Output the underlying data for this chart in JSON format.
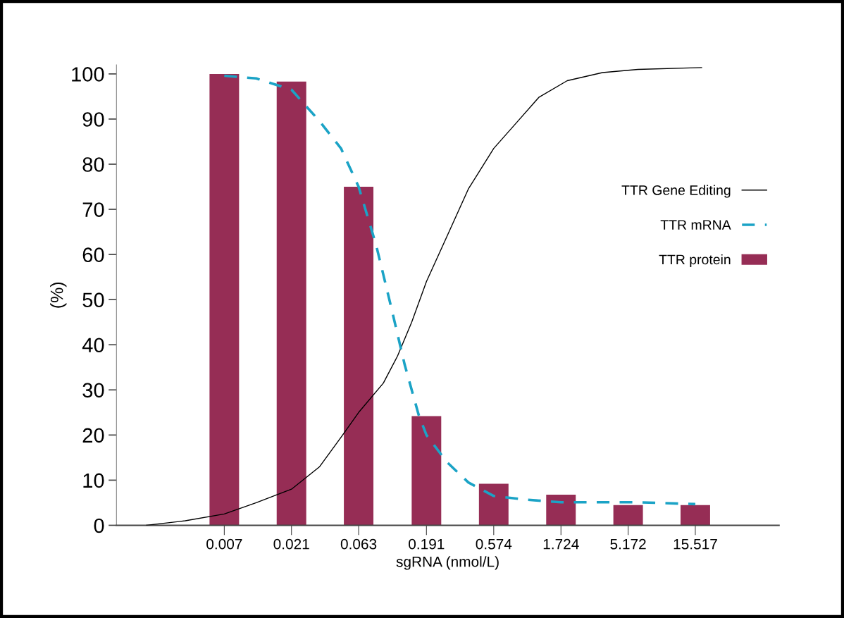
{
  "chart_data": {
    "type": "bar",
    "xlabel": "sgRNA (nmol/L)",
    "ylabel": "(%)",
    "log": "x",
    "xlim": [
      0.0012,
      61
    ],
    "xticks": [
      0.007,
      0.021,
      0.063,
      0.191,
      0.574,
      1.724,
      5.172,
      15.517
    ],
    "ylim": [
      0,
      102
    ],
    "yticks": [
      0,
      10,
      20,
      30,
      40,
      50,
      60,
      70,
      80,
      90,
      100
    ],
    "grid": false,
    "legend": "right",
    "marker": "none",
    "series": [
      {
        "name": "TTR Gene Editing",
        "type": "line",
        "color": "#000000",
        "line_style": "solid",
        "x": [
          0.00196,
          0.0037,
          0.007,
          0.0118,
          0.021,
          0.0333,
          0.0472,
          0.063,
          0.0944,
          0.119,
          0.15,
          0.191,
          0.267,
          0.379,
          0.574,
          0.85,
          1.2,
          1.91,
          3.4,
          6.07,
          17.2
        ],
        "values": [
          0,
          1,
          2.5,
          5,
          8,
          13,
          19.5,
          25,
          31.5,
          37.5,
          45,
          54,
          64,
          74.5,
          83.5,
          89.5,
          94.8,
          98.5,
          100.3,
          101,
          101.4
        ]
      },
      {
        "name": "TTR mRNA",
        "type": "line",
        "color": "#1ba3c6",
        "line_style": "dashed",
        "x": [
          0.007,
          0.0118,
          0.021,
          0.0333,
          0.0472,
          0.063,
          0.084,
          0.106,
          0.134,
          0.168,
          0.191,
          0.267,
          0.379,
          0.574,
          0.955,
          1.724,
          3.4,
          6.07,
          15.517
        ],
        "values": [
          99.6,
          99,
          96.5,
          89.5,
          83.5,
          75,
          62,
          49,
          35.5,
          24.5,
          20,
          14,
          9.5,
          6.5,
          5.7,
          5.1,
          5.1,
          5.1,
          4.7
        ]
      },
      {
        "name": "TTR protein",
        "color": "#962d55",
        "x": [
          0.007,
          0.021,
          0.063,
          0.191,
          0.574,
          1.724,
          5.172,
          15.517
        ],
        "values": [
          100,
          98.3,
          75,
          24.2,
          9.2,
          6.8,
          4.5,
          4.5
        ]
      }
    ]
  }
}
